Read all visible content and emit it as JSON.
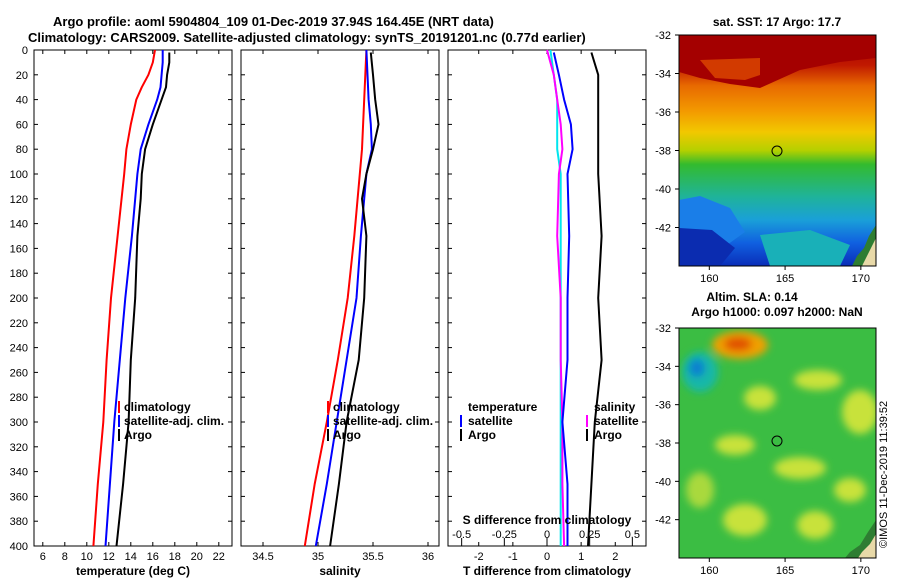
{
  "colors": {
    "climatology": "#ff0000",
    "satellite": "#0000ff",
    "argo": "#000000",
    "temp_diff": "#00e5ee",
    "sal_diff": "#ff00ff"
  },
  "title": {
    "line1": "Argo profile: aoml 5904804_109 01-Dec-2019 37.94S 164.45E (NRT data)",
    "line2": "Climatology: CARS2009. Satellite-adjusted climatology: synTS_20191201.nc (0.77d earlier)"
  },
  "credit": "©IMOS 11-Dec-2019 11:39:52",
  "depth_ticks": [
    0,
    20,
    40,
    60,
    80,
    100,
    120,
    140,
    160,
    180,
    200,
    220,
    240,
    260,
    280,
    300,
    320,
    340,
    360,
    380,
    400
  ],
  "chart_data": [
    {
      "type": "line",
      "name": "temperature",
      "xlabel": "temperature (deg C)",
      "ylabel": "depth",
      "xlim": [
        5.2,
        23.2
      ],
      "ylim": [
        400,
        0
      ],
      "xticks": [
        6,
        8,
        10,
        12,
        14,
        16,
        18,
        20,
        22
      ],
      "legend": [
        "climatology",
        "satellite-adj. clim.",
        "Argo"
      ],
      "series": [
        {
          "name": "climatology",
          "color_key": "climatology",
          "depth": [
            0,
            10,
            20,
            30,
            40,
            60,
            80,
            100,
            150,
            200,
            250,
            300,
            350,
            400
          ],
          "values": [
            16.2,
            16.0,
            15.6,
            15.0,
            14.5,
            14.0,
            13.6,
            13.4,
            12.8,
            12.2,
            11.8,
            11.5,
            11.0,
            10.6
          ]
        },
        {
          "name": "satellite-adj. clim.",
          "color_key": "satellite",
          "depth": [
            0,
            10,
            20,
            30,
            40,
            60,
            80,
            100,
            150,
            200,
            250,
            300,
            350,
            400
          ],
          "values": [
            16.9,
            16.9,
            16.8,
            16.7,
            16.4,
            15.6,
            14.9,
            14.6,
            14.1,
            13.5,
            13.0,
            12.5,
            12.1,
            11.7
          ]
        },
        {
          "name": "Argo",
          "color_key": "argo",
          "depth": [
            2,
            10,
            20,
            30,
            40,
            60,
            80,
            100,
            120,
            150,
            200,
            250,
            300,
            350,
            400
          ],
          "values": [
            17.5,
            17.5,
            17.3,
            17.2,
            16.8,
            16.0,
            15.3,
            15.0,
            14.9,
            14.6,
            14.4,
            14.0,
            13.8,
            13.3,
            12.7
          ]
        }
      ]
    },
    {
      "type": "line",
      "name": "salinity",
      "xlabel": "salinity",
      "ylabel": "depth",
      "xlim": [
        34.3,
        36.1
      ],
      "ylim": [
        400,
        0
      ],
      "xticks": [
        34.5,
        35,
        35.5,
        36
      ],
      "legend": [
        "climatology",
        "satellite-adj. clim.",
        "Argo"
      ],
      "series": [
        {
          "name": "climatology",
          "color_key": "climatology",
          "depth": [
            0,
            20,
            40,
            60,
            80,
            100,
            150,
            200,
            250,
            300,
            350,
            400
          ],
          "values": [
            35.44,
            35.43,
            35.42,
            35.41,
            35.4,
            35.38,
            35.33,
            35.27,
            35.18,
            35.08,
            34.97,
            34.88
          ]
        },
        {
          "name": "satellite-adj. clim.",
          "color_key": "satellite",
          "depth": [
            0,
            20,
            40,
            60,
            80,
            100,
            150,
            200,
            250,
            300,
            350,
            400
          ],
          "values": [
            35.44,
            35.45,
            35.46,
            35.48,
            35.49,
            35.44,
            35.39,
            35.35,
            35.26,
            35.17,
            35.08,
            34.98
          ]
        },
        {
          "name": "Argo",
          "color_key": "argo",
          "depth": [
            2,
            20,
            40,
            60,
            80,
            100,
            120,
            150,
            200,
            250,
            300,
            350,
            400
          ],
          "values": [
            35.48,
            35.5,
            35.52,
            35.55,
            35.5,
            35.44,
            35.4,
            35.44,
            35.42,
            35.37,
            35.26,
            35.19,
            35.11
          ]
        }
      ]
    },
    {
      "type": "line",
      "name": "difference from climatology",
      "xlabel": "T difference from climatology",
      "xlabel_top": "S difference from climatology",
      "ylabel": "depth",
      "xlim": [
        -2.9,
        2.9
      ],
      "ylim": [
        400,
        0
      ],
      "xticks": [
        -2,
        -1,
        0,
        1,
        2
      ],
      "xticks_top": [
        -0.5,
        -0.25,
        0,
        0.25,
        0.5
      ],
      "legend_left_title": "temperature",
      "legend_right_title": "salinity",
      "legend_entries": [
        "satellite",
        "Argo"
      ],
      "series": [
        {
          "name": "temperature satellite",
          "color_key": "temp_diff",
          "depth": [
            0,
            20,
            40,
            60,
            80,
            100,
            150,
            200,
            250,
            300,
            350,
            400
          ],
          "values": [
            0.1,
            0.2,
            0.3,
            0.3,
            0.3,
            0.4,
            0.4,
            0.4,
            0.4,
            0.4,
            0.4,
            0.4
          ]
        },
        {
          "name": "temperature Argo",
          "color_key": "argo",
          "depth": [
            2,
            20,
            40,
            60,
            80,
            100,
            150,
            200,
            250,
            300,
            350,
            400
          ],
          "values": [
            1.3,
            1.5,
            1.5,
            1.5,
            1.5,
            1.5,
            1.6,
            1.5,
            1.6,
            1.4,
            1.3,
            1.2
          ]
        },
        {
          "name": "salinity satellite",
          "color_key": "sal_diff",
          "depth": [
            0,
            20,
            40,
            60,
            80,
            100,
            150,
            200,
            250,
            300,
            350,
            400
          ],
          "values": [
            0.0,
            0.04,
            0.06,
            0.08,
            0.09,
            0.07,
            0.06,
            0.08,
            0.08,
            0.09,
            0.09,
            0.1
          ]
        },
        {
          "name": "salinity Argo",
          "color_key": "satellite",
          "depth": [
            2,
            20,
            40,
            60,
            80,
            100,
            150,
            200,
            250,
            300,
            350,
            400
          ],
          "values": [
            0.04,
            0.07,
            0.1,
            0.14,
            0.15,
            0.12,
            0.13,
            0.12,
            0.12,
            0.09,
            0.12,
            0.12
          ]
        }
      ]
    },
    {
      "type": "heatmap",
      "name": "sea surface temperature map",
      "title": "sat. SST: 17 Argo: 17.7",
      "xlim": [
        158,
        171
      ],
      "ylim": [
        -44,
        -32
      ],
      "xticks": [
        160,
        165,
        170
      ],
      "yticks": [
        -32,
        -34,
        -36,
        -38,
        -40,
        -42
      ],
      "argo_position": [
        164.45,
        -37.94
      ]
    },
    {
      "type": "heatmap",
      "name": "sea level anomaly map",
      "title_line1": "Altim. SLA: 0.14",
      "title_line2": "Argo h1000: 0.097 h2000: NaN",
      "xlim": [
        158,
        171
      ],
      "ylim": [
        -44,
        -32
      ],
      "xticks": [
        160,
        165,
        170
      ],
      "yticks": [
        -32,
        -34,
        -36,
        -38,
        -40,
        -42
      ],
      "argo_position": [
        164.45,
        -37.94
      ]
    }
  ]
}
